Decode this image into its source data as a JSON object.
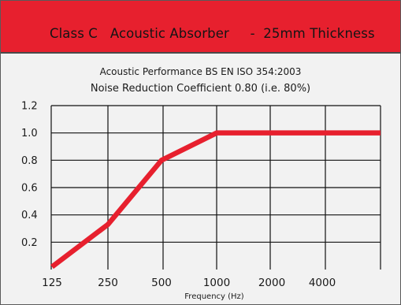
{
  "header": {
    "title": "Class C   Acoustic Absorber     -  25mm Thickness",
    "background": "#e7202e"
  },
  "subtitles": {
    "line1": "Acoustic Performance BS EN ISO 354:2003",
    "line2": "Noise Reduction Coefficient 0.80 (i.e. 80%)"
  },
  "chart_data": {
    "type": "line",
    "x": [
      "125",
      "250",
      "500",
      "1000",
      "2000",
      "4000"
    ],
    "y_ticks": [
      "1.2",
      "1.0",
      "0.8",
      "0.6",
      "0.4",
      "0.2"
    ],
    "series": [
      {
        "values": [
          0.02,
          0.33,
          0.8,
          1.0,
          1.0,
          1.0
        ],
        "color": "#e7202e"
      }
    ],
    "line_extends_to_plot_edge": true,
    "xlabel": "Frequency (Hz)",
    "ylabel": "",
    "ylim": [
      0,
      1.2
    ],
    "grid": true
  }
}
